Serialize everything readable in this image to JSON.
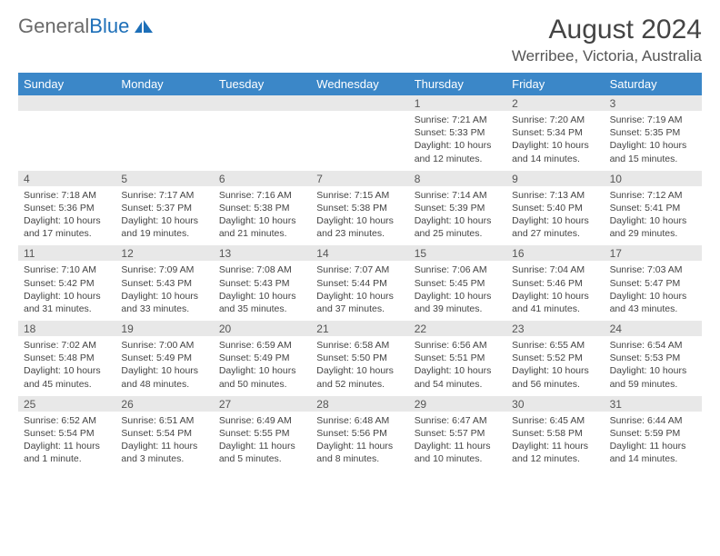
{
  "brand": {
    "name_gray": "General",
    "name_blue": "Blue"
  },
  "header": {
    "month_year": "August 2024",
    "location": "Werribee, Victoria, Australia"
  },
  "colors": {
    "header_blue": "#3b87c8",
    "stripe_gray": "#e8e8e8",
    "logo_blue": "#1d6fb8"
  },
  "daynames": [
    "Sunday",
    "Monday",
    "Tuesday",
    "Wednesday",
    "Thursday",
    "Friday",
    "Saturday"
  ],
  "weeks": [
    [
      {
        "date": "",
        "sunrise": "",
        "sunset": "",
        "daylight": ""
      },
      {
        "date": "",
        "sunrise": "",
        "sunset": "",
        "daylight": ""
      },
      {
        "date": "",
        "sunrise": "",
        "sunset": "",
        "daylight": ""
      },
      {
        "date": "",
        "sunrise": "",
        "sunset": "",
        "daylight": ""
      },
      {
        "date": "1",
        "sunrise": "Sunrise: 7:21 AM",
        "sunset": "Sunset: 5:33 PM",
        "daylight": "Daylight: 10 hours and 12 minutes."
      },
      {
        "date": "2",
        "sunrise": "Sunrise: 7:20 AM",
        "sunset": "Sunset: 5:34 PM",
        "daylight": "Daylight: 10 hours and 14 minutes."
      },
      {
        "date": "3",
        "sunrise": "Sunrise: 7:19 AM",
        "sunset": "Sunset: 5:35 PM",
        "daylight": "Daylight: 10 hours and 15 minutes."
      }
    ],
    [
      {
        "date": "4",
        "sunrise": "Sunrise: 7:18 AM",
        "sunset": "Sunset: 5:36 PM",
        "daylight": "Daylight: 10 hours and 17 minutes."
      },
      {
        "date": "5",
        "sunrise": "Sunrise: 7:17 AM",
        "sunset": "Sunset: 5:37 PM",
        "daylight": "Daylight: 10 hours and 19 minutes."
      },
      {
        "date": "6",
        "sunrise": "Sunrise: 7:16 AM",
        "sunset": "Sunset: 5:38 PM",
        "daylight": "Daylight: 10 hours and 21 minutes."
      },
      {
        "date": "7",
        "sunrise": "Sunrise: 7:15 AM",
        "sunset": "Sunset: 5:38 PM",
        "daylight": "Daylight: 10 hours and 23 minutes."
      },
      {
        "date": "8",
        "sunrise": "Sunrise: 7:14 AM",
        "sunset": "Sunset: 5:39 PM",
        "daylight": "Daylight: 10 hours and 25 minutes."
      },
      {
        "date": "9",
        "sunrise": "Sunrise: 7:13 AM",
        "sunset": "Sunset: 5:40 PM",
        "daylight": "Daylight: 10 hours and 27 minutes."
      },
      {
        "date": "10",
        "sunrise": "Sunrise: 7:12 AM",
        "sunset": "Sunset: 5:41 PM",
        "daylight": "Daylight: 10 hours and 29 minutes."
      }
    ],
    [
      {
        "date": "11",
        "sunrise": "Sunrise: 7:10 AM",
        "sunset": "Sunset: 5:42 PM",
        "daylight": "Daylight: 10 hours and 31 minutes."
      },
      {
        "date": "12",
        "sunrise": "Sunrise: 7:09 AM",
        "sunset": "Sunset: 5:43 PM",
        "daylight": "Daylight: 10 hours and 33 minutes."
      },
      {
        "date": "13",
        "sunrise": "Sunrise: 7:08 AM",
        "sunset": "Sunset: 5:43 PM",
        "daylight": "Daylight: 10 hours and 35 minutes."
      },
      {
        "date": "14",
        "sunrise": "Sunrise: 7:07 AM",
        "sunset": "Sunset: 5:44 PM",
        "daylight": "Daylight: 10 hours and 37 minutes."
      },
      {
        "date": "15",
        "sunrise": "Sunrise: 7:06 AM",
        "sunset": "Sunset: 5:45 PM",
        "daylight": "Daylight: 10 hours and 39 minutes."
      },
      {
        "date": "16",
        "sunrise": "Sunrise: 7:04 AM",
        "sunset": "Sunset: 5:46 PM",
        "daylight": "Daylight: 10 hours and 41 minutes."
      },
      {
        "date": "17",
        "sunrise": "Sunrise: 7:03 AM",
        "sunset": "Sunset: 5:47 PM",
        "daylight": "Daylight: 10 hours and 43 minutes."
      }
    ],
    [
      {
        "date": "18",
        "sunrise": "Sunrise: 7:02 AM",
        "sunset": "Sunset: 5:48 PM",
        "daylight": "Daylight: 10 hours and 45 minutes."
      },
      {
        "date": "19",
        "sunrise": "Sunrise: 7:00 AM",
        "sunset": "Sunset: 5:49 PM",
        "daylight": "Daylight: 10 hours and 48 minutes."
      },
      {
        "date": "20",
        "sunrise": "Sunrise: 6:59 AM",
        "sunset": "Sunset: 5:49 PM",
        "daylight": "Daylight: 10 hours and 50 minutes."
      },
      {
        "date": "21",
        "sunrise": "Sunrise: 6:58 AM",
        "sunset": "Sunset: 5:50 PM",
        "daylight": "Daylight: 10 hours and 52 minutes."
      },
      {
        "date": "22",
        "sunrise": "Sunrise: 6:56 AM",
        "sunset": "Sunset: 5:51 PM",
        "daylight": "Daylight: 10 hours and 54 minutes."
      },
      {
        "date": "23",
        "sunrise": "Sunrise: 6:55 AM",
        "sunset": "Sunset: 5:52 PM",
        "daylight": "Daylight: 10 hours and 56 minutes."
      },
      {
        "date": "24",
        "sunrise": "Sunrise: 6:54 AM",
        "sunset": "Sunset: 5:53 PM",
        "daylight": "Daylight: 10 hours and 59 minutes."
      }
    ],
    [
      {
        "date": "25",
        "sunrise": "Sunrise: 6:52 AM",
        "sunset": "Sunset: 5:54 PM",
        "daylight": "Daylight: 11 hours and 1 minute."
      },
      {
        "date": "26",
        "sunrise": "Sunrise: 6:51 AM",
        "sunset": "Sunset: 5:54 PM",
        "daylight": "Daylight: 11 hours and 3 minutes."
      },
      {
        "date": "27",
        "sunrise": "Sunrise: 6:49 AM",
        "sunset": "Sunset: 5:55 PM",
        "daylight": "Daylight: 11 hours and 5 minutes."
      },
      {
        "date": "28",
        "sunrise": "Sunrise: 6:48 AM",
        "sunset": "Sunset: 5:56 PM",
        "daylight": "Daylight: 11 hours and 8 minutes."
      },
      {
        "date": "29",
        "sunrise": "Sunrise: 6:47 AM",
        "sunset": "Sunset: 5:57 PM",
        "daylight": "Daylight: 11 hours and 10 minutes."
      },
      {
        "date": "30",
        "sunrise": "Sunrise: 6:45 AM",
        "sunset": "Sunset: 5:58 PM",
        "daylight": "Daylight: 11 hours and 12 minutes."
      },
      {
        "date": "31",
        "sunrise": "Sunrise: 6:44 AM",
        "sunset": "Sunset: 5:59 PM",
        "daylight": "Daylight: 11 hours and 14 minutes."
      }
    ]
  ]
}
